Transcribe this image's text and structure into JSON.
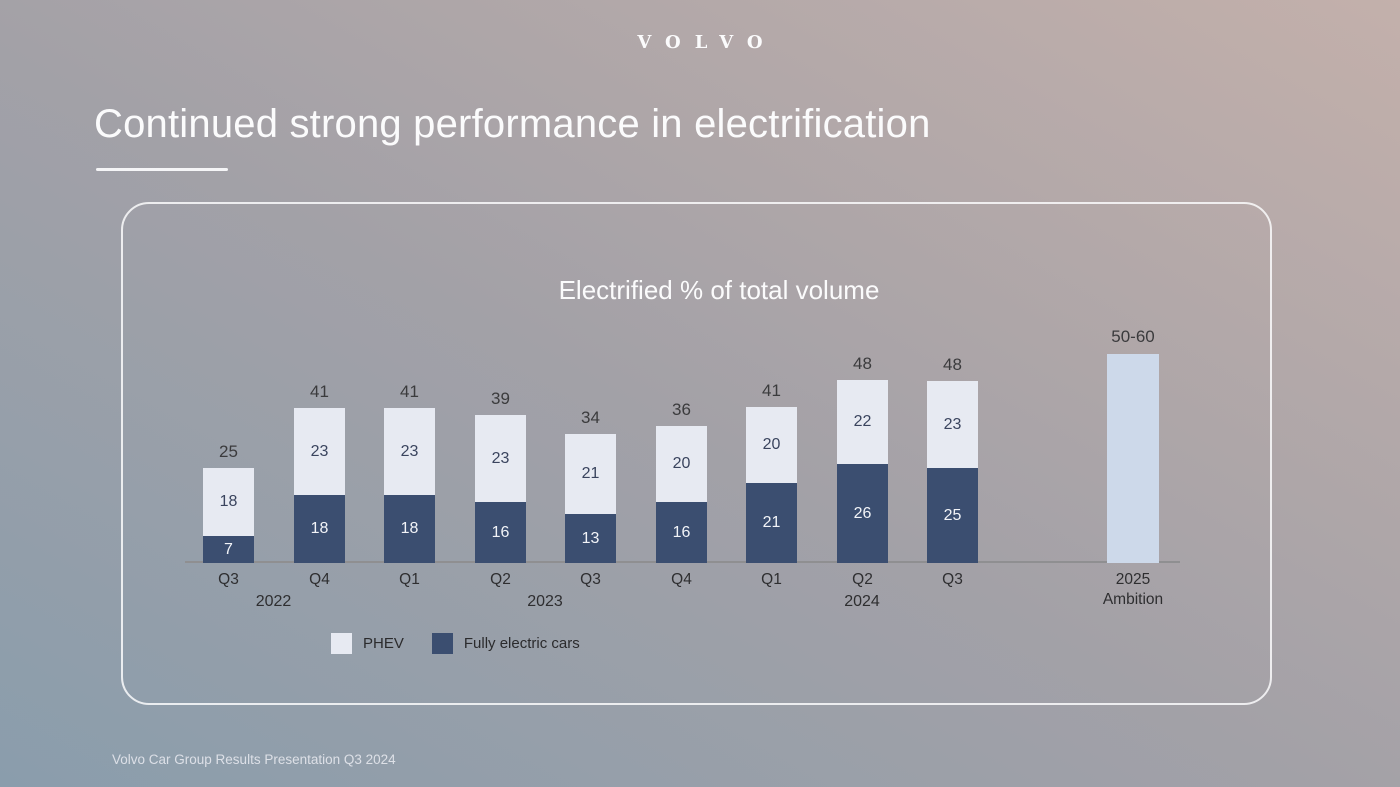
{
  "brand": {
    "logo_text": "VOLVO"
  },
  "slide": {
    "title": "Continued strong performance in electrification",
    "footer": "Volvo Car Group Results Presentation Q3 2024"
  },
  "chart_data": {
    "type": "bar",
    "stacked": true,
    "title": "Electrified % of total volume",
    "categories": [
      "Q3",
      "Q4",
      "Q1",
      "Q2",
      "Q3",
      "Q4",
      "Q1",
      "Q2",
      "Q3"
    ],
    "year_labels": [
      "2022",
      "2023",
      "2024"
    ],
    "series": [
      {
        "name": "PHEV",
        "color": "#e7eaf2",
        "values": [
          18,
          23,
          23,
          23,
          21,
          20,
          20,
          22,
          23
        ]
      },
      {
        "name": "Fully electric cars",
        "color": "#3b4e70",
        "values": [
          7,
          18,
          18,
          16,
          13,
          16,
          21,
          26,
          25
        ]
      }
    ],
    "totals": [
      25,
      41,
      41,
      39,
      34,
      36,
      41,
      48,
      48
    ],
    "ambition_bar": {
      "top_label": "50-60",
      "value": 55,
      "x_label_lines": [
        "2025",
        "Ambition"
      ],
      "color": "#cdd9ea"
    },
    "legend": [
      {
        "label": "PHEV",
        "color": "#e7eaf2"
      },
      {
        "label": "Fully electric cars",
        "color": "#3b4e70"
      }
    ],
    "xlabel": "",
    "ylabel": "",
    "ylim": [
      0,
      60
    ],
    "grid": false,
    "legend_position": "bottom-left"
  },
  "colors": {
    "axis": "#8f8f91",
    "total_label": "#3b3b3d",
    "tick_label": "#2e2e30",
    "label_on_dark": "#f2f4f8",
    "label_on_light": "#3a445e",
    "background_bottom_left": "#8a9dac",
    "background_mid": "#a3a1a7",
    "background_top_right": "#c3b0ab",
    "panel_border": "#fafafc",
    "title_text": "#fbfbfc"
  }
}
